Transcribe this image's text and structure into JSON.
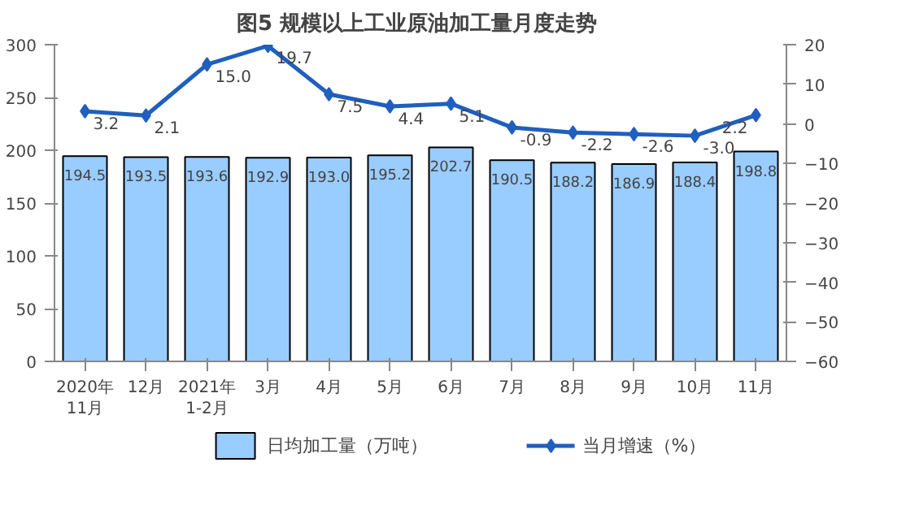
{
  "chart_data": {
    "type": "bar",
    "title": "图5  规模以上工业原油加工量月度走势",
    "categories": [
      "2020年\n11月",
      "12月",
      "2021年\n1-2月",
      "3月",
      "4月",
      "5月",
      "6月",
      "7月",
      "8月",
      "9月",
      "10月",
      "11月"
    ],
    "series": [
      {
        "name": "日均加工量（万吨）",
        "color": "#99ccff",
        "values": [
          194.5,
          193.5,
          193.6,
          192.9,
          193.0,
          195.2,
          202.7,
          190.5,
          188.2,
          186.9,
          188.4,
          198.8
        ],
        "value_labels": [
          "194.5",
          "193.5",
          "193.6",
          "192.9",
          "193.0",
          "195.2",
          "202.7",
          "190.5",
          "188.2",
          "186.9",
          "188.4",
          "198.8"
        ]
      },
      {
        "name": "当月增速（%）",
        "type": "line",
        "axis": "y2",
        "color": "#1f5fbf",
        "marker": "diamond",
        "values": [
          3.2,
          2.1,
          15.0,
          19.7,
          7.5,
          4.4,
          5.1,
          -0.9,
          -2.2,
          -2.6,
          -3.0,
          2.2
        ],
        "value_labels": [
          "3.2",
          "2.1",
          "15.0",
          "19.7",
          "7.5",
          "4.4",
          "5.1",
          "-0.9",
          "-2.2",
          "-2.6",
          "-3.0",
          "2.2"
        ]
      }
    ],
    "ylim": [
      0,
      300
    ],
    "yticks": [
      0,
      50,
      100,
      150,
      200,
      250,
      300
    ],
    "y2lim": [
      -60,
      20
    ],
    "y2ticks": [
      -60,
      -50,
      -40,
      -30,
      -20,
      -10,
      0,
      10,
      20
    ],
    "grid": false,
    "legend": "bottom"
  }
}
